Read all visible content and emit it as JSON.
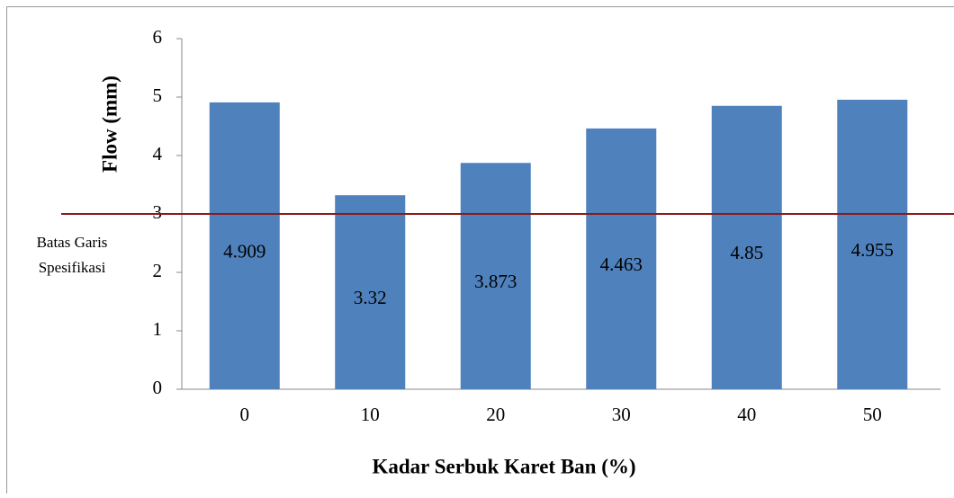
{
  "chart_data": {
    "type": "bar",
    "x_label": "Kadar Serbuk Karet Ban (%)",
    "y_label": "Flow (mm)",
    "categories": [
      "0",
      "10",
      "20",
      "30",
      "40",
      "50"
    ],
    "values": [
      4.909,
      3.32,
      3.873,
      4.463,
      4.85,
      4.955
    ],
    "color": "#4f81bd",
    "ylim": [
      0,
      6
    ],
    "yticks": [
      0,
      1,
      2,
      3,
      4,
      5,
      6
    ],
    "grid": false,
    "reference_line": {
      "value": 3,
      "label_lines": [
        "Batas Garis",
        "Spesifikasi"
      ],
      "color": "#8b1a1a"
    }
  }
}
